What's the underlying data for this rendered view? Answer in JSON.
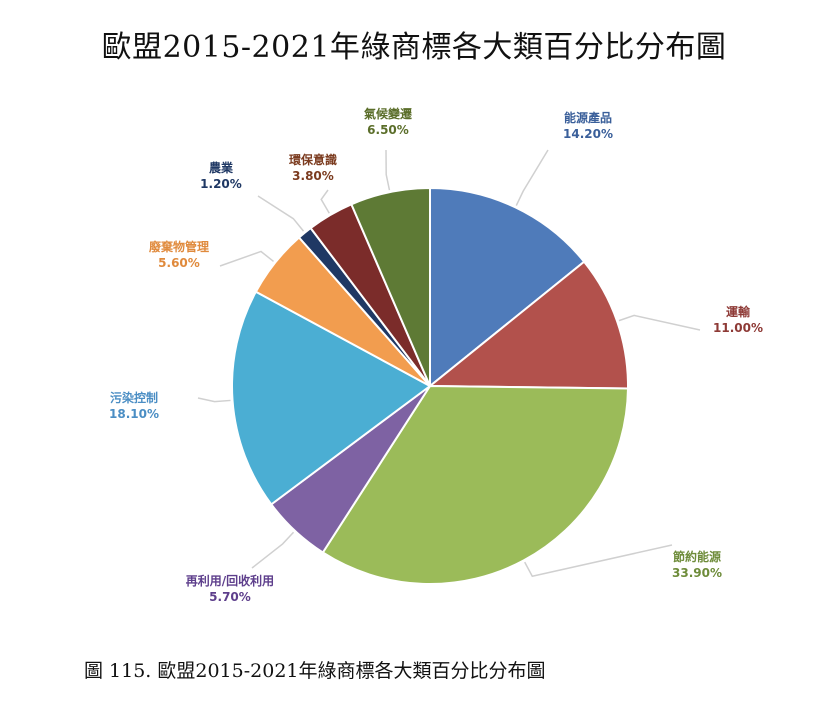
{
  "chart_data": {
    "type": "pie",
    "title": "歐盟2015-2021年綠商標各大類百分比分布圖",
    "caption": "圖 115. 歐盟2015-2021年綠商標各大類百分比分布圖",
    "slices": [
      {
        "name": "能源產品",
        "value": 14.2,
        "value_label": "14.20%",
        "color": "#4F7BBA",
        "label_color": "#3A5F9A"
      },
      {
        "name": "運輸",
        "value": 11.0,
        "value_label": "11.00%",
        "color": "#B2514C",
        "label_color": "#8E3A36"
      },
      {
        "name": "節約能源",
        "value": 33.9,
        "value_label": "33.90%",
        "color": "#9BBB59",
        "label_color": "#6E8C3A"
      },
      {
        "name": "再利用/回收利用",
        "value": 5.7,
        "value_label": "5.70%",
        "color": "#7E62A3",
        "label_color": "#5E3F8C"
      },
      {
        "name": "污染控制",
        "value": 18.1,
        "value_label": "18.10%",
        "color": "#4BAED3",
        "label_color": "#4B8EC4"
      },
      {
        "name": "廢棄物管理",
        "value": 5.6,
        "value_label": "5.60%",
        "color": "#F29D4F",
        "label_color": "#E08A3C"
      },
      {
        "name": "農業",
        "value": 1.2,
        "value_label": "1.20%",
        "color": "#1F3864",
        "label_color": "#1F3864"
      },
      {
        "name": "環保意識",
        "value": 3.8,
        "value_label": "3.80%",
        "color": "#7B2C2A",
        "label_color": "#7B3B1F"
      },
      {
        "name": "氣候變遷",
        "value": 6.5,
        "value_label": "6.50%",
        "color": "#5E7A35",
        "label_color": "#5B6E2A"
      }
    ],
    "legend": "none"
  }
}
